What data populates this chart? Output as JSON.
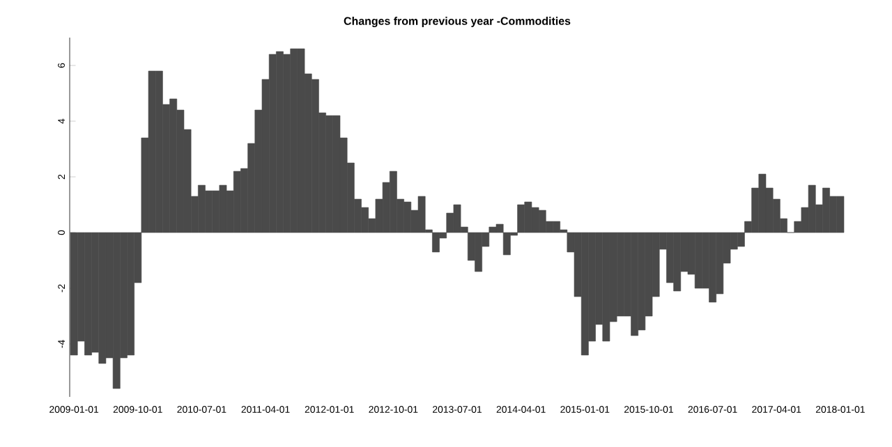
{
  "chart_data": {
    "type": "bar",
    "title": "Changes from previous year -Commodities",
    "categories": [
      "2009-01-01",
      null,
      null,
      null,
      null,
      null,
      null,
      null,
      null,
      "2009-10-01",
      null,
      null,
      null,
      null,
      null,
      null,
      null,
      null,
      "2010-07-01",
      null,
      null,
      null,
      null,
      null,
      null,
      null,
      null,
      "2011-04-01",
      null,
      null,
      null,
      null,
      null,
      null,
      null,
      null,
      "2012-01-01",
      null,
      null,
      null,
      null,
      null,
      null,
      null,
      null,
      "2012-10-01",
      null,
      null,
      null,
      null,
      null,
      null,
      null,
      null,
      "2013-07-01",
      null,
      null,
      null,
      null,
      null,
      null,
      null,
      null,
      "2014-04-01",
      null,
      null,
      null,
      null,
      null,
      null,
      null,
      null,
      "2015-01-01",
      null,
      null,
      null,
      null,
      null,
      null,
      null,
      null,
      "2015-10-01",
      null,
      null,
      null,
      null,
      null,
      null,
      null,
      null,
      "2016-07-01",
      null,
      null,
      null,
      null,
      null,
      null,
      null,
      null,
      "2017-04-01",
      null,
      null,
      null,
      null,
      null,
      null,
      null,
      null,
      "2018-01-01"
    ],
    "values": [
      -4.4,
      -3.9,
      -4.4,
      -4.3,
      -4.7,
      -4.5,
      -5.6,
      -4.5,
      -4.4,
      -1.8,
      3.4,
      5.8,
      5.8,
      4.6,
      4.8,
      4.4,
      3.7,
      1.3,
      1.7,
      1.5,
      1.5,
      1.7,
      1.5,
      2.2,
      2.3,
      3.2,
      4.4,
      5.5,
      6.4,
      6.5,
      6.4,
      6.6,
      6.6,
      5.7,
      5.5,
      4.3,
      4.2,
      4.2,
      3.4,
      2.5,
      1.2,
      0.9,
      0.5,
      1.2,
      1.8,
      2.2,
      1.2,
      1.1,
      0.8,
      1.3,
      0.1,
      -0.7,
      -0.2,
      0.7,
      1.0,
      0.2,
      -1.0,
      -1.4,
      -0.5,
      0.2,
      0.3,
      -0.8,
      -0.1,
      1.0,
      1.1,
      0.9,
      0.8,
      0.4,
      0.4,
      0.1,
      -0.7,
      -2.3,
      -4.4,
      -3.9,
      -3.3,
      -3.9,
      -3.2,
      -3.0,
      -3.0,
      -3.7,
      -3.5,
      -3.0,
      -2.3,
      -0.6,
      -1.8,
      -2.1,
      -1.4,
      -1.5,
      -2.0,
      -2.0,
      -2.5,
      -2.2,
      -1.1,
      -0.6,
      -0.5,
      0.4,
      1.6,
      2.1,
      1.6,
      1.2,
      0.5,
      0,
      0.4,
      0.9,
      1.7,
      1.0,
      1.6,
      1.3,
      1.3
    ],
    "color": "#4a4a4a",
    "ylim": [
      -5.9,
      7.0
    ],
    "yticks": [
      -4,
      -2,
      0,
      2,
      4,
      6
    ],
    "grid": false
  }
}
